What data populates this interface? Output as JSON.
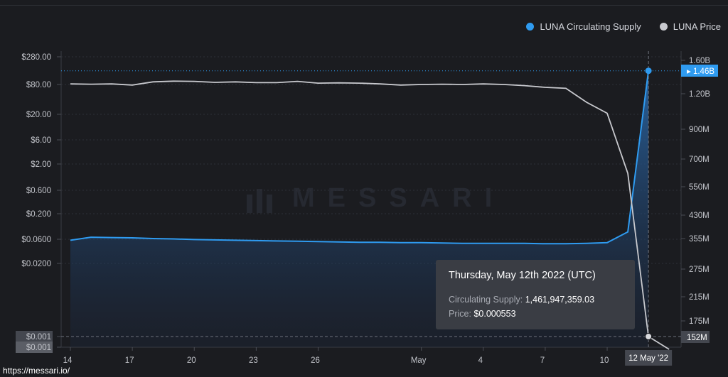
{
  "legend": {
    "supply_label": "LUNA Circulating Supply",
    "price_label": "LUNA Price",
    "supply_color": "#2f9bf0",
    "price_color": "#c8c9ce"
  },
  "watermark": {
    "text": "MESSARI"
  },
  "footer": {
    "url": "https://messari.io/"
  },
  "tooltip": {
    "title": "Thursday, May 12th 2022 (UTC)",
    "supply_label": "Circulating Supply:",
    "supply_value": "1,461,947,359.03",
    "price_label": "Price:",
    "price_value": "$0.000553"
  },
  "chart_data": {
    "type": "line",
    "x_tick_labels": [
      "14",
      "17",
      "20",
      "23",
      "26",
      "May",
      "4",
      "7",
      "10",
      "12 May '22"
    ],
    "left_axis": {
      "scale": "log",
      "tick_labels": [
        "$280.00",
        "$80.00",
        "$20.00",
        "$6.00",
        "$2.00",
        "$0.600",
        "$0.200",
        "$0.0600",
        "$0.0200",
        "$0.001",
        "$0.001"
      ]
    },
    "right_axis": {
      "tick_labels": [
        "1.60B",
        "1.20B",
        "900M",
        "700M",
        "550M",
        "430M",
        "355M",
        "275M",
        "215M",
        "175M"
      ],
      "highlight_labels": [
        "1.46B",
        "152M"
      ]
    },
    "dates": [
      "Apr 14",
      "Apr 15",
      "Apr 16",
      "Apr 17",
      "Apr 18",
      "Apr 19",
      "Apr 20",
      "Apr 21",
      "Apr 22",
      "Apr 23",
      "Apr 24",
      "Apr 25",
      "Apr 26",
      "Apr 27",
      "Apr 28",
      "Apr 29",
      "Apr 30",
      "May 1",
      "May 2",
      "May 3",
      "May 4",
      "May 5",
      "May 6",
      "May 7",
      "May 8",
      "May 9",
      "May 10",
      "May 11",
      "May 12",
      "May 13"
    ],
    "series": [
      {
        "name": "LUNA Circulating Supply",
        "axis": "right",
        "color": "#2f9bf0",
        "values": [
          350000000,
          359000000,
          358000000,
          357000000,
          355000000,
          354000000,
          352000000,
          351000000,
          350000000,
          349000000,
          348000000,
          347000000,
          346000000,
          345000000,
          344000000,
          344000000,
          343000000,
          343000000,
          342000000,
          341000000,
          341000000,
          341000000,
          341000000,
          340000000,
          340000000,
          341000000,
          343000000,
          375000000,
          1461947359.03,
          null
        ]
      },
      {
        "name": "LUNA Price",
        "axis": "left",
        "color": "#c8c9ce",
        "values": [
          82,
          81,
          82,
          78,
          90,
          93,
          92,
          88,
          90,
          87,
          87,
          92,
          85,
          86,
          85,
          82,
          78,
          80,
          81,
          80,
          82,
          80,
          76,
          70,
          67,
          35,
          21,
          1.3,
          0.000553,
          0.0002
        ]
      }
    ]
  }
}
